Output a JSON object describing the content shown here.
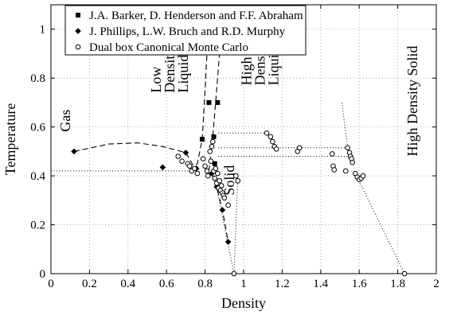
{
  "chart_data": {
    "type": "scatter",
    "xlabel": "Density",
    "ylabel": "Temperature",
    "xlim": [
      0,
      2
    ],
    "ylim": [
      0,
      1.1
    ],
    "xticks": [
      "0",
      "0.2",
      "0.4",
      "0.6",
      "0.8",
      "1",
      "1.2",
      "1.4",
      "1.6",
      "1.8",
      "2"
    ],
    "yticks": [
      "0",
      "0.2",
      "0.4",
      "0.6",
      "0.8",
      "1"
    ],
    "grid": true,
    "legend_position": "top-left",
    "series": [
      {
        "name": "J.A. Barker, D. Henderson and F.F. Abraham",
        "marker": "filled-square",
        "points": [
          [
            0.785,
            0.55
          ],
          [
            0.82,
            0.7
          ],
          [
            0.845,
            0.56
          ],
          [
            0.865,
            0.7
          ],
          [
            0.85,
            0.45
          ]
        ]
      },
      {
        "name": "J. Phillips, L.W. Bruch and R.D. Murphy",
        "marker": "filled-diamond",
        "points": [
          [
            0.12,
            0.5
          ],
          [
            0.58,
            0.435
          ],
          [
            0.7,
            0.495
          ],
          [
            0.755,
            0.43
          ],
          [
            0.835,
            0.41
          ],
          [
            0.86,
            0.355
          ],
          [
            0.89,
            0.26
          ],
          [
            0.92,
            0.13
          ]
        ]
      },
      {
        "name": "Dual box Canonical Monte Carlo",
        "marker": "open-circle",
        "points": [
          [
            0.66,
            0.48
          ],
          [
            0.68,
            0.46
          ],
          [
            0.71,
            0.45
          ],
          [
            0.72,
            0.44
          ],
          [
            0.73,
            0.42
          ],
          [
            0.745,
            0.43
          ],
          [
            0.76,
            0.41
          ],
          [
            0.79,
            0.47
          ],
          [
            0.8,
            0.44
          ],
          [
            0.81,
            0.42
          ],
          [
            0.815,
            0.4
          ],
          [
            0.825,
            0.5
          ],
          [
            0.83,
            0.46
          ],
          [
            0.835,
            0.52
          ],
          [
            0.84,
            0.54
          ],
          [
            0.845,
            0.42
          ],
          [
            0.85,
            0.39
          ],
          [
            0.855,
            0.43
          ],
          [
            0.86,
            0.37
          ],
          [
            0.865,
            0.41
          ],
          [
            0.87,
            0.35
          ],
          [
            0.875,
            0.38
          ],
          [
            0.88,
            0.34
          ],
          [
            0.885,
            0.36
          ],
          [
            0.89,
            0.33
          ],
          [
            0.895,
            0.32
          ],
          [
            0.9,
            0.31
          ],
          [
            0.92,
            0.28
          ],
          [
            0.95,
            0.0
          ],
          [
            0.96,
            0.4
          ],
          [
            0.97,
            0.38
          ],
          [
            1.12,
            0.575
          ],
          [
            1.14,
            0.56
          ],
          [
            1.15,
            0.54
          ],
          [
            1.16,
            0.52
          ],
          [
            1.17,
            0.51
          ],
          [
            1.28,
            0.5
          ],
          [
            1.29,
            0.515
          ],
          [
            1.46,
            0.49
          ],
          [
            1.465,
            0.44
          ],
          [
            1.47,
            0.425
          ],
          [
            1.53,
            0.42
          ],
          [
            1.54,
            0.515
          ],
          [
            1.55,
            0.495
          ],
          [
            1.555,
            0.48
          ],
          [
            1.56,
            0.47
          ],
          [
            1.565,
            0.455
          ],
          [
            1.58,
            0.41
          ],
          [
            1.59,
            0.395
          ],
          [
            1.6,
            0.385
          ],
          [
            1.61,
            0.39
          ],
          [
            1.62,
            0.4
          ],
          [
            1.835,
            0.0
          ]
        ]
      }
    ],
    "curves": [
      {
        "style": "dashed",
        "points": [
          [
            0.12,
            0.5
          ],
          [
            0.3,
            0.53
          ],
          [
            0.45,
            0.535
          ],
          [
            0.58,
            0.52
          ],
          [
            0.7,
            0.495
          ],
          [
            0.74,
            0.44
          ]
        ]
      },
      {
        "style": "dashed",
        "points": [
          [
            0.72,
            0.42
          ],
          [
            0.76,
            0.45
          ],
          [
            0.785,
            0.55
          ],
          [
            0.8,
            0.75
          ],
          [
            0.82,
            1.05
          ]
        ]
      },
      {
        "style": "dashed",
        "points": [
          [
            0.82,
            0.42
          ],
          [
            0.84,
            0.56
          ],
          [
            0.86,
            0.75
          ],
          [
            0.89,
            1.05
          ]
        ]
      },
      {
        "style": "dashed",
        "points": [
          [
            0.835,
            0.41
          ],
          [
            0.86,
            0.355
          ],
          [
            0.89,
            0.26
          ],
          [
            0.92,
            0.13
          ]
        ]
      },
      {
        "style": "dotted",
        "points": [
          [
            0.0,
            0.42
          ],
          [
            0.72,
            0.42
          ]
        ]
      },
      {
        "style": "dotted",
        "points": [
          [
            0.87,
            0.48
          ],
          [
            1.55,
            0.48
          ]
        ]
      },
      {
        "style": "dotted",
        "points": [
          [
            0.87,
            0.515
          ],
          [
            1.55,
            0.515
          ]
        ]
      },
      {
        "style": "dotted",
        "points": [
          [
            0.87,
            0.575
          ],
          [
            1.12,
            0.575
          ]
        ]
      },
      {
        "style": "dotted",
        "points": [
          [
            0.85,
            0.39
          ],
          [
            0.95,
            0.0
          ],
          [
            0.97,
            0.4
          ]
        ]
      },
      {
        "style": "dotted",
        "points": [
          [
            1.51,
            0.7
          ],
          [
            1.54,
            0.515
          ]
        ]
      },
      {
        "style": "dotted",
        "points": [
          [
            1.58,
            0.41
          ],
          [
            1.835,
            0.0
          ]
        ]
      }
    ],
    "annotations": [
      {
        "text": "Gas",
        "x": 0.1,
        "y": 0.58,
        "rotate": -90
      },
      {
        "text": "Low",
        "x": 0.57,
        "y": 0.74,
        "rotate": -90
      },
      {
        "text": "Density",
        "x": 0.64,
        "y": 0.74,
        "rotate": -90
      },
      {
        "text": "Liquid",
        "x": 0.71,
        "y": 0.74,
        "rotate": -90
      },
      {
        "text": "High",
        "x": 1.04,
        "y": 0.77,
        "rotate": -90
      },
      {
        "text": "Density",
        "x": 1.11,
        "y": 0.77,
        "rotate": -90
      },
      {
        "text": "Liquid",
        "x": 1.18,
        "y": 0.77,
        "rotate": -90
      },
      {
        "text": "Solid",
        "x": 0.95,
        "y": 0.32,
        "rotate": -90
      },
      {
        "text": "High Density Solid",
        "x": 1.9,
        "y": 0.48,
        "rotate": -90
      }
    ]
  }
}
